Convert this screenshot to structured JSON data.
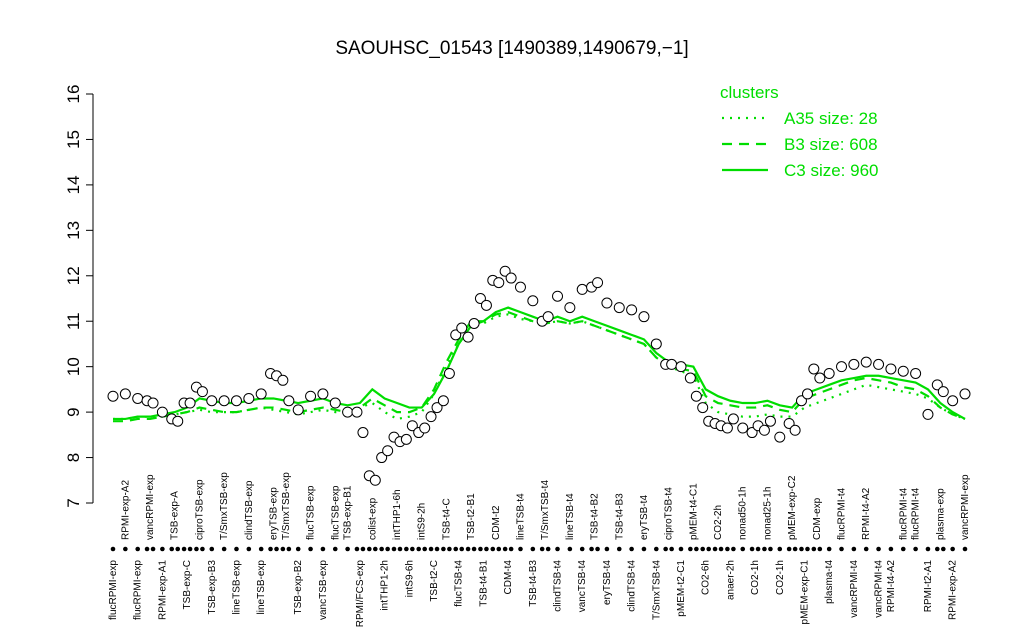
{
  "chart_data": {
    "type": "line",
    "title": "SAOUHSC_01543 [1490389,1490679,−1]",
    "ylim": [
      7,
      16
    ],
    "yticks": [
      7,
      8,
      9,
      10,
      11,
      12,
      13,
      14,
      15,
      16
    ],
    "legend_title": "clusters",
    "legend_position": "top-right",
    "point_fill": "#ffffff",
    "point_stroke": "#000000",
    "conditions": [
      {
        "label": "flucRPMI-exp",
        "row": "bottom",
        "values": [
          9.35
        ]
      },
      {
        "label": "RPMI-exp-A2",
        "row": "top",
        "values": [
          9.4
        ]
      },
      {
        "label": "flucRPMI-exp",
        "row": "bottom",
        "values": [
          9.3
        ]
      },
      {
        "label": "vancRPMI-exp",
        "row": "top",
        "values": [
          9.25,
          9.2
        ]
      },
      {
        "label": "RPMI-exp-A1",
        "row": "bottom",
        "values": [
          9.0
        ]
      },
      {
        "label": "TSB-exp-A",
        "row": "top",
        "values": [
          8.85,
          8.8
        ]
      },
      {
        "label": "TSB-exp-C",
        "row": "bottom",
        "values": [
          9.2,
          9.2
        ]
      },
      {
        "label": "ciproTSB-exp",
        "row": "top",
        "values": [
          9.55,
          9.45
        ]
      },
      {
        "label": "TSB-exp-B3",
        "row": "bottom",
        "values": [
          9.25
        ]
      },
      {
        "label": "T/SmxTSB-exp",
        "row": "top",
        "values": [
          9.25
        ]
      },
      {
        "label": "lineTSB-exp",
        "row": "bottom",
        "values": [
          9.25
        ]
      },
      {
        "label": "clindTSB-exp",
        "row": "top",
        "values": [
          9.3
        ]
      },
      {
        "label": "lineTSB-exp",
        "row": "bottom",
        "values": [
          9.4
        ]
      },
      {
        "label": "eryTSB-exp",
        "row": "top",
        "values": [
          9.85,
          9.8
        ]
      },
      {
        "label": "T/SmxTSB-exp",
        "row": "top",
        "values": [
          9.7,
          9.25
        ]
      },
      {
        "label": "TSB-exp-B2",
        "row": "bottom",
        "values": [
          9.05
        ]
      },
      {
        "label": "flucTSB-exp",
        "row": "top",
        "values": [
          9.35
        ]
      },
      {
        "label": "vancTSB-exp",
        "row": "bottom",
        "values": [
          9.4
        ]
      },
      {
        "label": "flucTSB-exp",
        "row": "top",
        "values": [
          9.2
        ]
      },
      {
        "label": "TSB-exp-B1",
        "row": "top",
        "values": [
          9.0
        ]
      },
      {
        "label": "RPMI/FCS-exp",
        "row": "bottom",
        "values": [
          9.0,
          8.55
        ]
      },
      {
        "label": "colist-exp",
        "row": "top",
        "values": [
          7.6,
          7.5
        ]
      },
      {
        "label": "intTHP1-2h",
        "row": "bottom",
        "values": [
          8.0,
          8.15
        ]
      },
      {
        "label": "intTHP1-6h",
        "row": "top",
        "values": [
          8.45,
          8.35
        ]
      },
      {
        "label": "intS9-6h",
        "row": "bottom",
        "values": [
          8.4,
          8.7
        ]
      },
      {
        "label": "intS9-2h",
        "row": "top",
        "values": [
          8.55,
          8.65
        ]
      },
      {
        "label": "TSB-t2-C",
        "row": "bottom",
        "values": [
          8.9,
          9.1
        ]
      },
      {
        "label": "TSB-t4-C",
        "row": "top",
        "values": [
          9.25,
          9.85
        ]
      },
      {
        "label": "flucTSB-t4",
        "row": "bottom",
        "values": [
          10.7,
          10.85
        ]
      },
      {
        "label": "TSB-t2-B1",
        "row": "top",
        "values": [
          10.65,
          10.95
        ]
      },
      {
        "label": "TSB-t4-B1",
        "row": "bottom",
        "values": [
          11.5,
          11.35
        ]
      },
      {
        "label": "CDM-t2",
        "row": "top",
        "values": [
          11.9,
          11.85
        ]
      },
      {
        "label": "CDM-t4",
        "row": "bottom",
        "values": [
          12.1,
          11.95
        ]
      },
      {
        "label": "lineTSB-t4",
        "row": "top",
        "values": [
          11.75
        ]
      },
      {
        "label": "TSB-t4-B3",
        "row": "bottom",
        "values": [
          11.45
        ]
      },
      {
        "label": "T/SmxTSB-t4",
        "row": "top",
        "values": [
          11.0,
          11.1
        ]
      },
      {
        "label": "clindTSB-t4",
        "row": "bottom",
        "values": [
          11.55
        ]
      },
      {
        "label": "lineTSB-t4",
        "row": "top",
        "values": [
          11.3
        ]
      },
      {
        "label": "vancTSB-t4",
        "row": "bottom",
        "values": [
          11.7
        ]
      },
      {
        "label": "TSB-t4-B2",
        "row": "top",
        "values": [
          11.75,
          11.85
        ]
      },
      {
        "label": "eryTSB-t4",
        "row": "bottom",
        "values": [
          11.4
        ]
      },
      {
        "label": "TSB-t4-B3",
        "row": "top",
        "values": [
          11.3
        ]
      },
      {
        "label": "clindTSB-t4",
        "row": "bottom",
        "values": [
          11.25
        ]
      },
      {
        "label": "eryTSB-t4",
        "row": "top",
        "values": [
          11.1
        ]
      },
      {
        "label": "T/SmxTSB-t4",
        "row": "bottom",
        "values": [
          10.5
        ]
      },
      {
        "label": "ciproTSB-t4",
        "row": "top",
        "values": [
          10.05,
          10.05
        ]
      },
      {
        "label": "pMEM-t2-C1",
        "row": "bottom",
        "values": [
          10.0
        ]
      },
      {
        "label": "pMEM-t4-C1",
        "row": "top",
        "values": [
          9.75,
          9.35
        ]
      },
      {
        "label": "CO2-6h",
        "row": "bottom",
        "values": [
          9.1,
          8.8
        ]
      },
      {
        "label": "CO2-2h",
        "row": "top",
        "values": [
          8.75,
          8.7
        ]
      },
      {
        "label": "anaer-2h",
        "row": "bottom",
        "values": [
          8.65,
          8.85
        ]
      },
      {
        "label": "nonad50-1h",
        "row": "top",
        "values": [
          8.65
        ]
      },
      {
        "label": "CO2-1h",
        "row": "bottom",
        "values": [
          8.55,
          8.7
        ]
      },
      {
        "label": "nonad25-1h",
        "row": "top",
        "values": [
          8.6,
          8.8
        ]
      },
      {
        "label": "CO2-1h",
        "row": "bottom",
        "values": [
          8.45
        ]
      },
      {
        "label": "pMEM-exp-C2",
        "row": "top",
        "values": [
          8.75,
          8.6
        ]
      },
      {
        "label": "pMEM-exp-C1",
        "row": "bottom",
        "values": [
          9.25,
          9.4
        ]
      },
      {
        "label": "CDM-exp",
        "row": "top",
        "values": [
          9.95,
          9.75
        ]
      },
      {
        "label": "plasma-t4",
        "row": "bottom",
        "values": [
          9.85
        ]
      },
      {
        "label": "flucRPMI-t4",
        "row": "top",
        "values": [
          10.0
        ]
      },
      {
        "label": "vancRPMI-t4",
        "row": "bottom",
        "values": [
          10.05
        ]
      },
      {
        "label": "RPMI-t4-A2",
        "row": "top",
        "values": [
          10.1
        ]
      },
      {
        "label": "vancRPMI-t4",
        "row": "bottom",
        "values": [
          10.05
        ]
      },
      {
        "label": "RPMI-t4-A2",
        "row": "bottom",
        "values": [
          9.95
        ]
      },
      {
        "label": "flucRPMI-t4",
        "row": "top",
        "values": [
          9.9
        ]
      },
      {
        "label": "flucRPMI-t4",
        "row": "top",
        "values": [
          9.85
        ]
      },
      {
        "label": "RPMI-t2-A1",
        "row": "bottom",
        "values": [
          8.95
        ]
      },
      {
        "label": "plasma-exp",
        "row": "top",
        "values": [
          9.6,
          9.45
        ]
      },
      {
        "label": "RPMI-exp-A2",
        "row": "bottom",
        "values": [
          9.25
        ]
      },
      {
        "label": "vancRPMI-exp",
        "row": "top",
        "values": [
          9.4
        ]
      }
    ],
    "series": [
      {
        "name": "A35 size: 28",
        "color": "#00dd00",
        "dash": "dotted",
        "values": [
          8.85,
          8.85,
          8.9,
          8.9,
          8.9,
          8.95,
          9.0,
          9.05,
          9.0,
          9.0,
          9.0,
          9.05,
          9.1,
          9.05,
          9.0,
          8.95,
          9.0,
          9.05,
          9.0,
          9.0,
          9.1,
          9.2,
          9.0,
          8.85,
          8.9,
          9.0,
          9.4,
          10.0,
          10.5,
          10.9,
          10.95,
          11.1,
          11.15,
          11.05,
          11.0,
          10.95,
          11.0,
          10.95,
          11.0,
          10.9,
          10.8,
          10.7,
          10.6,
          10.5,
          10.2,
          10.0,
          9.9,
          9.8,
          9.2,
          9.0,
          8.95,
          8.9,
          8.9,
          8.95,
          8.9,
          8.9,
          9.1,
          9.2,
          9.3,
          9.4,
          9.5,
          9.6,
          9.55,
          9.5,
          9.45,
          9.4,
          9.3,
          9.1,
          8.95,
          8.85
        ]
      },
      {
        "name": "B3 size: 608",
        "color": "#00dd00",
        "dash": "dashed",
        "values": [
          8.8,
          8.8,
          8.85,
          8.85,
          8.9,
          8.95,
          9.0,
          9.1,
          9.05,
          9.0,
          9.0,
          9.05,
          9.1,
          9.1,
          9.05,
          9.0,
          9.05,
          9.1,
          9.05,
          9.0,
          9.1,
          9.3,
          9.15,
          9.0,
          9.0,
          9.1,
          9.5,
          10.1,
          10.6,
          11.0,
          11.0,
          11.15,
          11.2,
          11.1,
          11.0,
          10.95,
          11.0,
          10.95,
          11.0,
          10.9,
          10.8,
          10.7,
          10.6,
          10.5,
          10.2,
          10.0,
          9.95,
          9.9,
          9.35,
          9.2,
          9.15,
          9.1,
          9.1,
          9.15,
          9.05,
          9.0,
          9.3,
          9.4,
          9.5,
          9.6,
          9.7,
          9.75,
          9.7,
          9.65,
          9.55,
          9.5,
          9.35,
          9.1,
          8.95,
          8.85
        ]
      },
      {
        "name": "C3 size: 960",
        "color": "#00dd00",
        "dash": "solid",
        "values": [
          8.85,
          8.85,
          8.9,
          8.9,
          8.95,
          9.0,
          9.1,
          9.3,
          9.25,
          9.2,
          9.2,
          9.25,
          9.3,
          9.3,
          9.25,
          9.2,
          9.25,
          9.3,
          9.2,
          9.15,
          9.2,
          9.5,
          9.3,
          9.2,
          9.1,
          9.1,
          9.4,
          9.9,
          10.5,
          10.9,
          11.0,
          11.2,
          11.3,
          11.2,
          11.1,
          11.0,
          11.1,
          11.0,
          11.1,
          11.0,
          10.9,
          10.8,
          10.7,
          10.6,
          10.3,
          10.1,
          10.05,
          10.0,
          9.5,
          9.35,
          9.25,
          9.2,
          9.2,
          9.25,
          9.15,
          9.1,
          9.4,
          9.5,
          9.6,
          9.7,
          9.75,
          9.8,
          9.8,
          9.75,
          9.7,
          9.65,
          9.5,
          9.2,
          9.0,
          8.85
        ]
      }
    ]
  }
}
